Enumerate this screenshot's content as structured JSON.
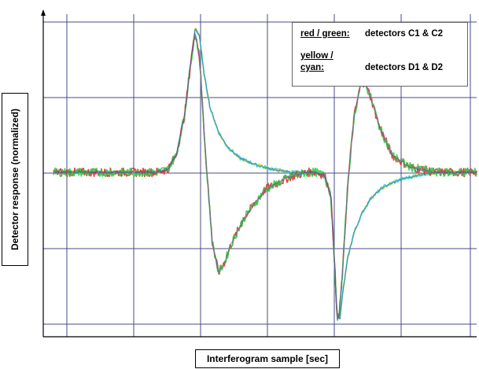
{
  "chart_data": {
    "type": "line",
    "title": "",
    "xlabel": "Interferogram sample [sec]",
    "ylabel": "Detector response (normalized)",
    "x_range": [
      0,
      100
    ],
    "y_range": [
      -1.1,
      1.1
    ],
    "grid": true,
    "legend_position": "top-right",
    "legend": [
      {
        "key": "red / green:",
        "value": "detectors C1 & C2"
      },
      {
        "key_line1": "yellow /",
        "key_line2": "cyan:",
        "value": "detectors D1 & D2"
      }
    ],
    "series": [
      {
        "colors": [
          "#e03030",
          "#30d040"
        ],
        "x": [
          0,
          24,
          27,
          29,
          31,
          32.5,
          33.5,
          34.5,
          36,
          37.5,
          39,
          40.5,
          42,
          45,
          50,
          56,
          60,
          62,
          64,
          65.5,
          66.3,
          67,
          67.5,
          68.3,
          69.5,
          71,
          72.5,
          73.5,
          75,
          77,
          80,
          84,
          90,
          100
        ],
        "y": [
          0,
          0,
          0.02,
          0.12,
          0.4,
          0.78,
          0.98,
          0.8,
          0.1,
          -0.48,
          -0.7,
          -0.62,
          -0.5,
          -0.32,
          -0.12,
          -0.03,
          0,
          0,
          -0.02,
          -0.15,
          -0.55,
          -1.02,
          -1.0,
          -0.7,
          -0.1,
          0.38,
          0.6,
          0.63,
          0.52,
          0.32,
          0.12,
          0.04,
          0,
          0
        ]
      },
      {
        "colors": [
          "#e0d030",
          "#30d0e0"
        ],
        "x": [
          0,
          24,
          27,
          29,
          31,
          32.5,
          33.5,
          34.5,
          35.5,
          37,
          39,
          41,
          44,
          48,
          52,
          56,
          60,
          62,
          64,
          65.5,
          66.3,
          67,
          67.7,
          68.3,
          69.5,
          71,
          73,
          75,
          78,
          82,
          86,
          90,
          100
        ],
        "y": [
          0,
          0,
          0.02,
          0.12,
          0.4,
          0.78,
          1.0,
          0.95,
          0.7,
          0.45,
          0.28,
          0.18,
          0.1,
          0.05,
          0.02,
          0,
          0,
          0,
          -0.02,
          -0.15,
          -0.55,
          -0.98,
          -1.02,
          -0.85,
          -0.6,
          -0.42,
          -0.28,
          -0.18,
          -0.1,
          -0.05,
          -0.02,
          0,
          0
        ]
      }
    ]
  }
}
